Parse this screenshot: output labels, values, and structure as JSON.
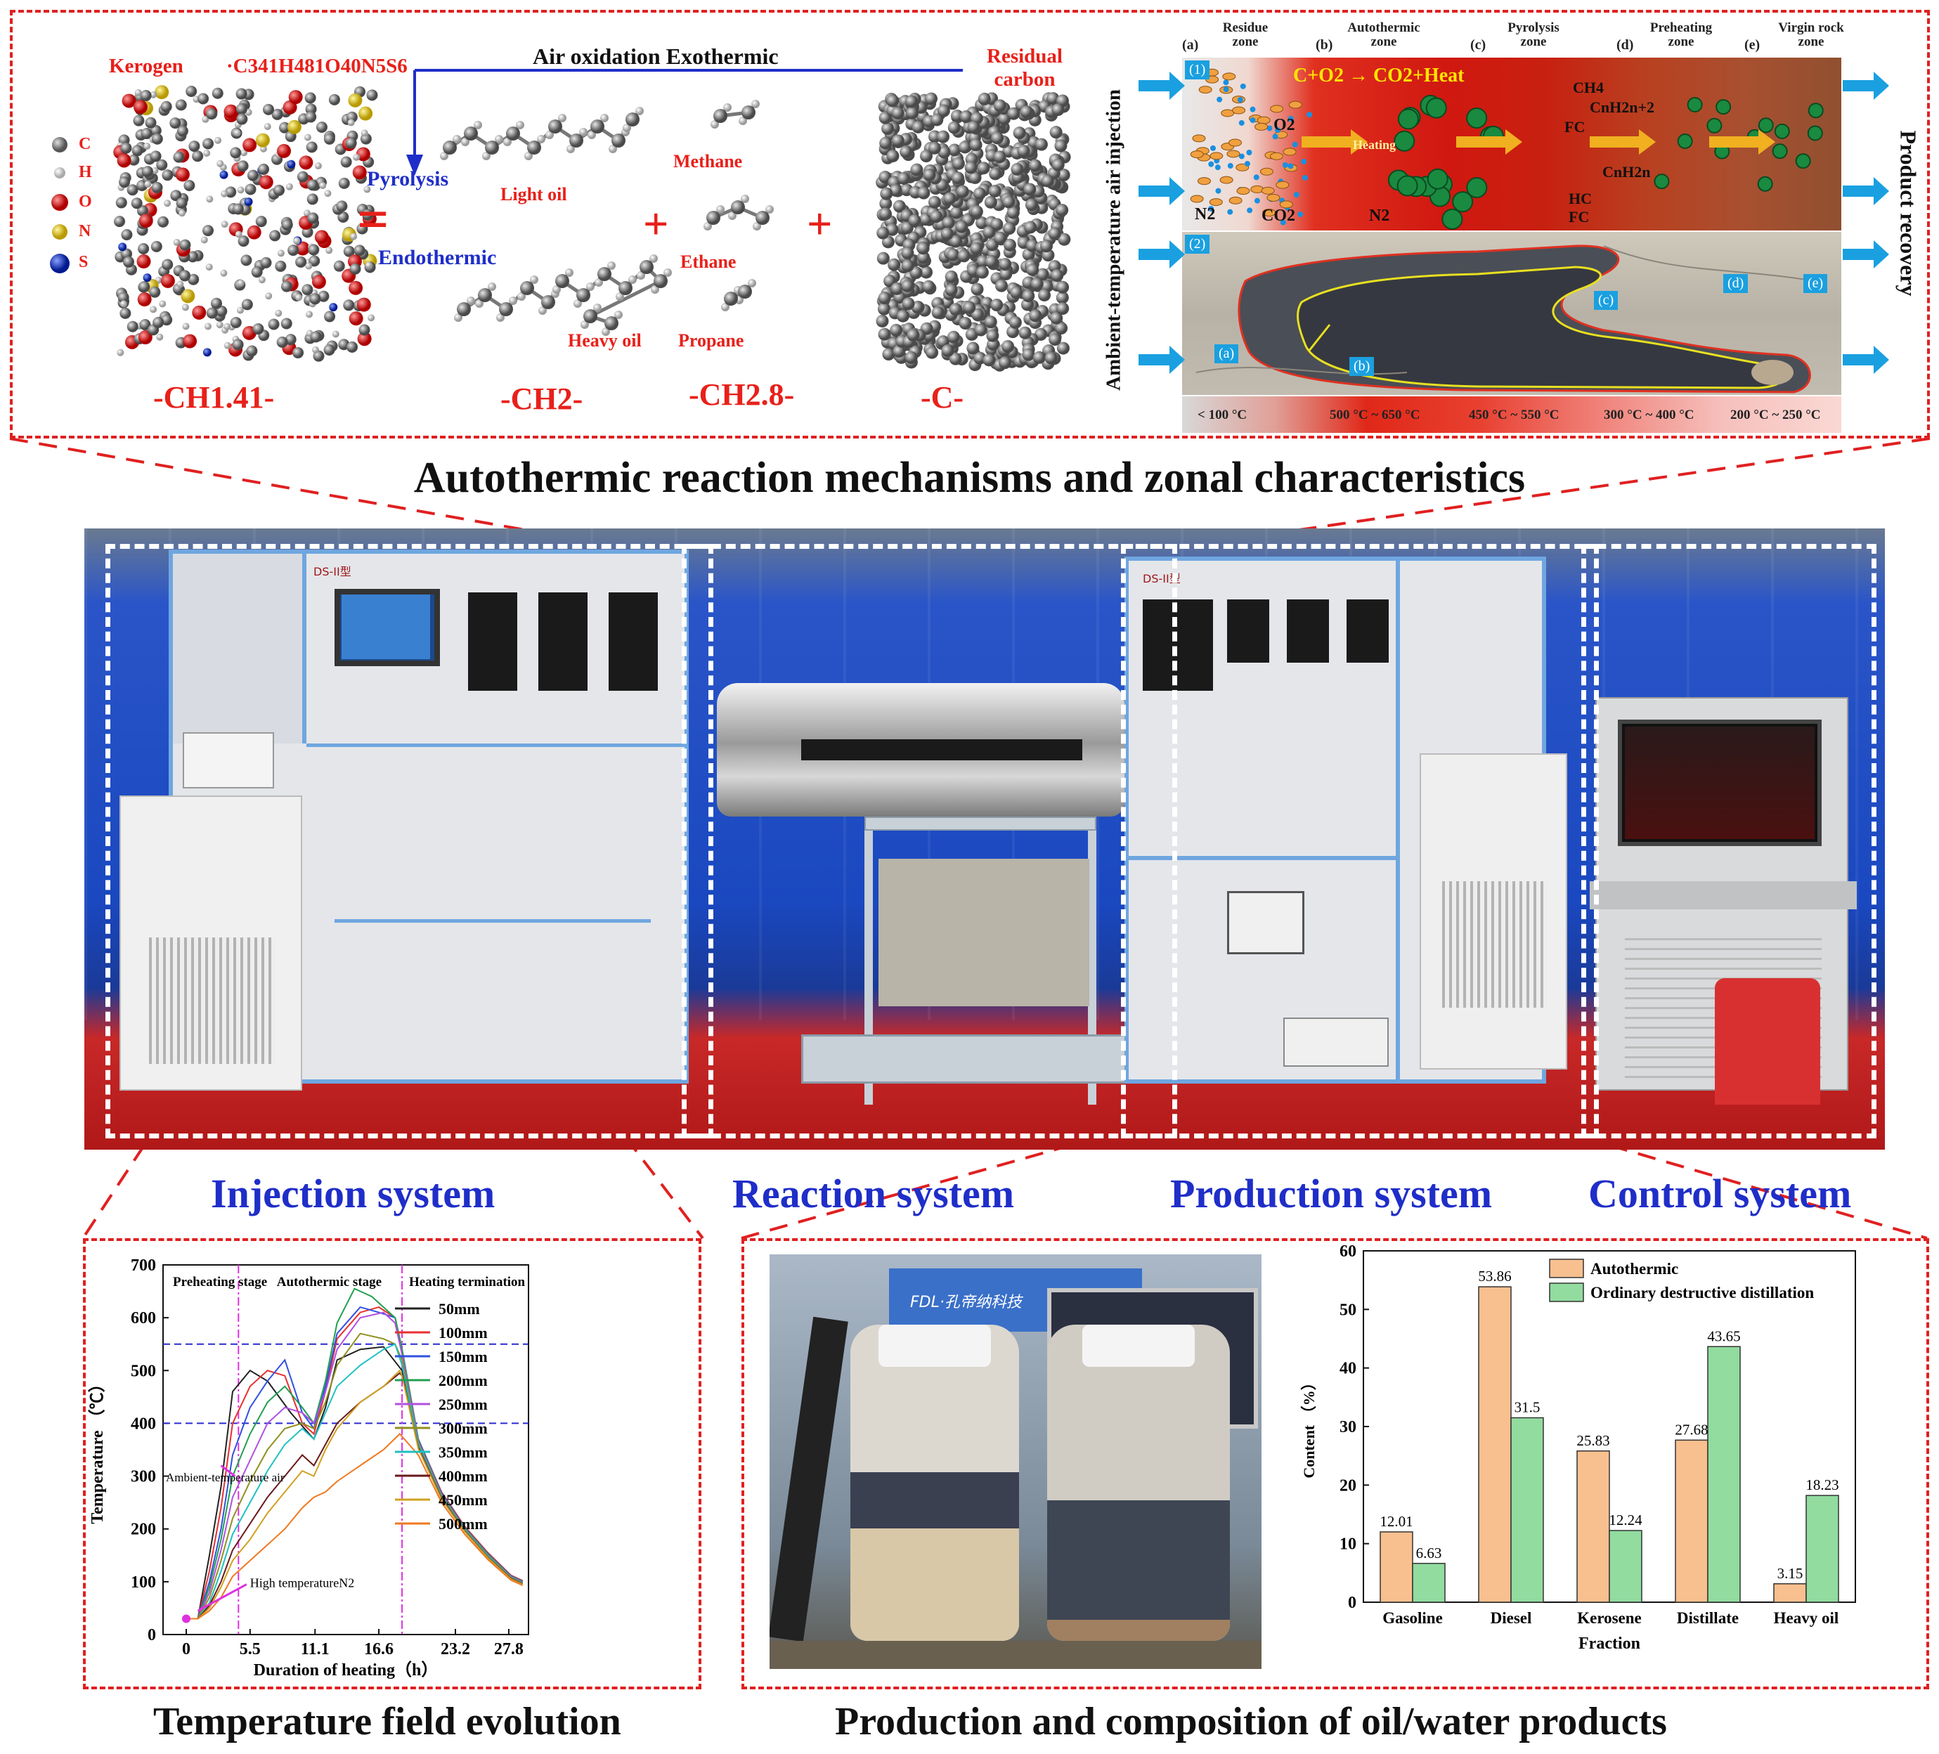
{
  "top_panel": {
    "kerogen_label": "Kerogen",
    "kerogen_formula_text": "·C341H481O40N5S6",
    "legend_atoms": [
      {
        "symbol": "C",
        "color": "#8a8a8a"
      },
      {
        "symbol": "H",
        "color": "#f2f2f2"
      },
      {
        "symbol": "O",
        "color": "#e01818"
      },
      {
        "symbol": "N",
        "color": "#e8d020"
      },
      {
        "symbol": "S",
        "color": "#1030c8"
      }
    ],
    "air_oxidation": "Air oxidation  Exothermic",
    "residual_carbon": "Residual carbon",
    "pyrolysis": "Pyrolysis",
    "endothermic": "Endothermic",
    "equals": "=",
    "plus": "+",
    "light_oil": "Light oil",
    "heavy_oil": "Heavy oil",
    "methane": "Methane",
    "ethane": "Ethane",
    "propane": "Propane",
    "formula_ch141": "-CH1.41-",
    "formula_ch2": "-CH2-",
    "formula_ch28": "-CH2.8-",
    "formula_c": "-C-",
    "ambient_air_injection": "Ambient-temperature air injection",
    "product_recovery": "Product recovery",
    "zones": [
      {
        "letter": "(a)",
        "name": "Residue zone"
      },
      {
        "letter": "(b)",
        "name": "Autothermic zone"
      },
      {
        "letter": "(c)",
        "name": "Pyrolysis zone"
      },
      {
        "letter": "(d)",
        "name": "Preheating zone"
      },
      {
        "letter": "(e)",
        "name": "Virgin rock zone"
      }
    ],
    "reaction_text": "C+O2 → CO2+Heat",
    "panel1_tag": "(1)",
    "panel2_tag": "(2)",
    "o2": "O2",
    "n2": "N2",
    "co2": "CO2",
    "ch4": "CH4",
    "cnh2n2": "CnH2n+2",
    "cnh2n": "CnH2n",
    "fc": "FC",
    "hc": "HC",
    "heating": "Heating",
    "zone_tags": [
      "(a)",
      "(b)",
      "(c)",
      "(d)",
      "(e)"
    ],
    "temp_bands": [
      "< 100 °C",
      "500 °C ~ 650 °C",
      "450 °C ~ 550 °C",
      "300 °C ~ 400 °C",
      "200 °C ~ 250 °C"
    ]
  },
  "captions": {
    "mechanisms": "Autothermic reaction mechanisms and zonal characteristics",
    "temperature": "Temperature  field evolution",
    "production": "Production and composition of oil/water products"
  },
  "systems": {
    "injection": "Injection system",
    "reaction": "Reaction system",
    "production": "Production system",
    "control": "Control system"
  },
  "photo_overlay": {
    "device_label_left": "DS-II型",
    "device_label_right": "DS-II型",
    "bottle_brand": "FDL·孔帝纳科技"
  },
  "colors": {
    "red_dash": "#e02020",
    "title_blue": "#1f2ec8",
    "autothermic_bar": "#f9c08f",
    "distillation_bar": "#92dca0"
  },
  "temp_chart": {
    "type": "line",
    "xlabel": "Duration of heating（h）",
    "ylabel": "Temperature （℃）",
    "xticks": [
      "0",
      "5.5",
      "11.1",
      "16.6",
      "23.2",
      "27.8"
    ],
    "xtick_values": [
      0,
      5.5,
      11.1,
      16.6,
      23.2,
      27.8
    ],
    "yticks": [
      "0",
      "100",
      "200",
      "300",
      "400",
      "500",
      "600",
      "700"
    ],
    "xlim": [
      -2,
      29.5
    ],
    "ylim": [
      0,
      700
    ],
    "stage_labels": {
      "preheating": "Preheating stage",
      "autothermic": "Autothermic stage",
      "termination": "Heating termination"
    },
    "annotations": {
      "ambient_air": "Ambient-temperature air",
      "high_temp_n2": "High temperatureN2"
    },
    "vlines": [
      4.5,
      18.6
    ],
    "hlines": [
      400,
      550
    ],
    "series": [
      {
        "name": "50mm",
        "color": "#222222",
        "points": [
          [
            0,
            30
          ],
          [
            1,
            30
          ],
          [
            2,
            150
          ],
          [
            3,
            280
          ],
          [
            4,
            460
          ],
          [
            5.5,
            500
          ],
          [
            7,
            480
          ],
          [
            9,
            420
          ],
          [
            11,
            370
          ],
          [
            12,
            430
          ],
          [
            13,
            520
          ],
          [
            15,
            540
          ],
          [
            17,
            545
          ],
          [
            18.6,
            500
          ],
          [
            20,
            360
          ],
          [
            22,
            260
          ],
          [
            24,
            200
          ],
          [
            26,
            150
          ],
          [
            28,
            110
          ],
          [
            29,
            100
          ]
        ]
      },
      {
        "name": "100mm",
        "color": "#e83030",
        "points": [
          [
            0,
            30
          ],
          [
            1,
            30
          ],
          [
            2,
            120
          ],
          [
            3,
            240
          ],
          [
            4,
            400
          ],
          [
            5.5,
            470
          ],
          [
            7,
            500
          ],
          [
            8.5,
            490
          ],
          [
            10,
            400
          ],
          [
            11,
            380
          ],
          [
            12,
            460
          ],
          [
            13,
            560
          ],
          [
            15,
            610
          ],
          [
            16.6,
            620
          ],
          [
            18,
            600
          ],
          [
            18.6,
            540
          ],
          [
            20,
            370
          ],
          [
            22,
            270
          ],
          [
            24,
            205
          ],
          [
            26,
            155
          ],
          [
            28,
            112
          ],
          [
            29,
            102
          ]
        ]
      },
      {
        "name": "150mm",
        "color": "#3050e0",
        "points": [
          [
            0,
            30
          ],
          [
            1,
            30
          ],
          [
            2,
            100
          ],
          [
            3,
            200
          ],
          [
            4,
            340
          ],
          [
            5.5,
            430
          ],
          [
            7,
            480
          ],
          [
            8.5,
            520
          ],
          [
            10,
            420
          ],
          [
            11,
            390
          ],
          [
            12,
            470
          ],
          [
            13,
            570
          ],
          [
            15,
            620
          ],
          [
            16.6,
            610
          ],
          [
            18,
            600
          ],
          [
            18.6,
            540
          ],
          [
            20,
            370
          ],
          [
            22,
            268
          ],
          [
            24,
            203
          ],
          [
            26,
            153
          ],
          [
            28,
            111
          ],
          [
            29,
            101
          ]
        ]
      },
      {
        "name": "200mm",
        "color": "#20a050",
        "points": [
          [
            0,
            30
          ],
          [
            1,
            30
          ],
          [
            2,
            90
          ],
          [
            3,
            180
          ],
          [
            4,
            300
          ],
          [
            5.5,
            380
          ],
          [
            7,
            440
          ],
          [
            8.5,
            470
          ],
          [
            10,
            430
          ],
          [
            11,
            400
          ],
          [
            12,
            480
          ],
          [
            13,
            590
          ],
          [
            14.5,
            655
          ],
          [
            16,
            640
          ],
          [
            18,
            600
          ],
          [
            18.6,
            540
          ],
          [
            20,
            368
          ],
          [
            22,
            266
          ],
          [
            24,
            202
          ],
          [
            26,
            152
          ],
          [
            28,
            110
          ],
          [
            29,
            100
          ]
        ]
      },
      {
        "name": "250mm",
        "color": "#b050e0",
        "points": [
          [
            0,
            30
          ],
          [
            1,
            30
          ],
          [
            2,
            80
          ],
          [
            3,
            160
          ],
          [
            4,
            260
          ],
          [
            5.5,
            330
          ],
          [
            7,
            400
          ],
          [
            8.5,
            430
          ],
          [
            10,
            420
          ],
          [
            11,
            400
          ],
          [
            12,
            460
          ],
          [
            13,
            540
          ],
          [
            15,
            600
          ],
          [
            17,
            610
          ],
          [
            18,
            590
          ],
          [
            18.6,
            530
          ],
          [
            20,
            365
          ],
          [
            22,
            264
          ],
          [
            24,
            200
          ],
          [
            26,
            150
          ],
          [
            28,
            109
          ],
          [
            29,
            99
          ]
        ]
      },
      {
        "name": "300mm",
        "color": "#909020",
        "points": [
          [
            0,
            30
          ],
          [
            1,
            30
          ],
          [
            2,
            70
          ],
          [
            3,
            140
          ],
          [
            4,
            220
          ],
          [
            5.5,
            290
          ],
          [
            7,
            350
          ],
          [
            8.5,
            390
          ],
          [
            10,
            400
          ],
          [
            11,
            390
          ],
          [
            12,
            440
          ],
          [
            13,
            510
          ],
          [
            15,
            570
          ],
          [
            17,
            560
          ],
          [
            18,
            550
          ],
          [
            18.6,
            520
          ],
          [
            20,
            362
          ],
          [
            22,
            262
          ],
          [
            24,
            199
          ],
          [
            26,
            149
          ],
          [
            28,
            108
          ],
          [
            29,
            98
          ]
        ]
      },
      {
        "name": "350mm",
        "color": "#20c0c0",
        "points": [
          [
            0,
            30
          ],
          [
            1,
            30
          ],
          [
            2,
            60
          ],
          [
            3,
            120
          ],
          [
            4,
            190
          ],
          [
            5.5,
            250
          ],
          [
            7,
            310
          ],
          [
            8.5,
            360
          ],
          [
            10,
            390
          ],
          [
            11,
            370
          ],
          [
            12,
            420
          ],
          [
            13,
            470
          ],
          [
            15,
            510
          ],
          [
            17,
            540
          ],
          [
            18,
            550
          ],
          [
            18.6,
            510
          ],
          [
            20,
            360
          ],
          [
            22,
            260
          ],
          [
            24,
            198
          ],
          [
            26,
            148
          ],
          [
            28,
            107
          ],
          [
            29,
            97
          ]
        ]
      },
      {
        "name": "400mm",
        "color": "#6a1a1a",
        "points": [
          [
            0,
            30
          ],
          [
            1,
            30
          ],
          [
            2,
            55
          ],
          [
            3,
            100
          ],
          [
            4,
            160
          ],
          [
            5.5,
            210
          ],
          [
            7,
            260
          ],
          [
            8.5,
            300
          ],
          [
            10,
            340
          ],
          [
            11,
            320
          ],
          [
            12,
            360
          ],
          [
            13,
            400
          ],
          [
            15,
            440
          ],
          [
            17,
            470
          ],
          [
            18.4,
            495
          ],
          [
            18.6,
            490
          ],
          [
            20,
            355
          ],
          [
            22,
            258
          ],
          [
            24,
            196
          ],
          [
            26,
            146
          ],
          [
            28,
            106
          ],
          [
            29,
            96
          ]
        ]
      },
      {
        "name": "450mm",
        "color": "#d0a020",
        "points": [
          [
            0,
            30
          ],
          [
            1,
            30
          ],
          [
            2,
            50
          ],
          [
            3,
            90
          ],
          [
            4,
            140
          ],
          [
            5.5,
            180
          ],
          [
            7,
            230
          ],
          [
            8.5,
            270
          ],
          [
            10,
            310
          ],
          [
            11,
            300
          ],
          [
            12,
            350
          ],
          [
            13,
            390
          ],
          [
            15,
            440
          ],
          [
            17,
            470
          ],
          [
            18.4,
            500
          ],
          [
            18.6,
            490
          ],
          [
            20,
            352
          ],
          [
            22,
            256
          ],
          [
            24,
            195
          ],
          [
            26,
            145
          ],
          [
            28,
            105
          ],
          [
            29,
            95
          ]
        ]
      },
      {
        "name": "500mm",
        "color": "#f07820",
        "points": [
          [
            0,
            30
          ],
          [
            1,
            30
          ],
          [
            2,
            45
          ],
          [
            3,
            70
          ],
          [
            4,
            110
          ],
          [
            5.5,
            140
          ],
          [
            7,
            170
          ],
          [
            8.5,
            200
          ],
          [
            10,
            240
          ],
          [
            11,
            260
          ],
          [
            12,
            270
          ],
          [
            13,
            290
          ],
          [
            15,
            320
          ],
          [
            17,
            350
          ],
          [
            18.4,
            380
          ],
          [
            18.6,
            375
          ],
          [
            20,
            340
          ],
          [
            22,
            250
          ],
          [
            24,
            190
          ],
          [
            26,
            142
          ],
          [
            28,
            103
          ],
          [
            29,
            93
          ]
        ]
      }
    ]
  },
  "bar_chart": {
    "type": "bar",
    "categories": [
      "Gasoline",
      "Diesel",
      "Kerosene",
      "Distillate",
      "Heavy oil"
    ],
    "series": [
      {
        "name": "Autothermic",
        "values": [
          12.01,
          53.86,
          25.83,
          27.68,
          3.15
        ]
      },
      {
        "name": "Ordinary destructive distillation",
        "values": [
          6.63,
          31.5,
          12.24,
          43.65,
          18.23
        ]
      }
    ],
    "value_labels": [
      [
        "12.01",
        "53.86",
        "25.83",
        "27.68",
        "3.15"
      ],
      [
        "6.63",
        "31.5",
        "12.24",
        "43.65",
        "18.23"
      ]
    ],
    "xlabel": "Fraction",
    "ylabel": "Content （%）",
    "yticks": [
      "0",
      "10",
      "20",
      "30",
      "40",
      "50",
      "60"
    ],
    "ylim": [
      0,
      60
    ]
  }
}
